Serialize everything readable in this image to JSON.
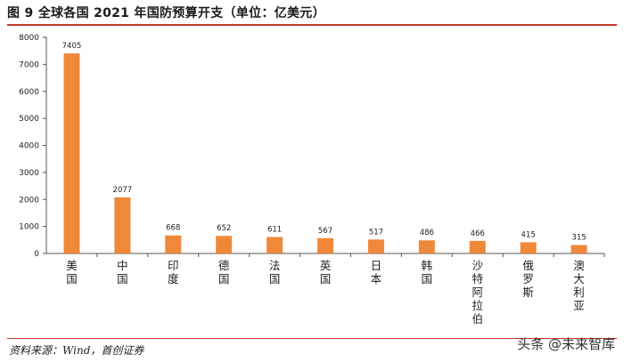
{
  "header": {
    "title": "图 9 全球各国 2021 年国防预算开支（单位：亿美元）"
  },
  "footer": {
    "source": "资料来源：Wind，首创证券",
    "watermark": "头条 @未来智库"
  },
  "colors": {
    "accent": "#c0392b",
    "bar": "#f0883a"
  },
  "chart_data": {
    "type": "bar",
    "title": "",
    "xlabel": "",
    "ylabel": "",
    "ylim": [
      0,
      8000
    ],
    "yticks": [
      0,
      1000,
      2000,
      3000,
      4000,
      5000,
      6000,
      7000,
      8000
    ],
    "grid": false,
    "categories": [
      "美国",
      "中国",
      "印度",
      "德国",
      "法国",
      "英国",
      "日本",
      "韩国",
      "沙特阿拉伯",
      "俄罗斯",
      "澳大利亚"
    ],
    "values": [
      7405,
      2077,
      668,
      652,
      611,
      567,
      517,
      486,
      466,
      415,
      315
    ]
  }
}
